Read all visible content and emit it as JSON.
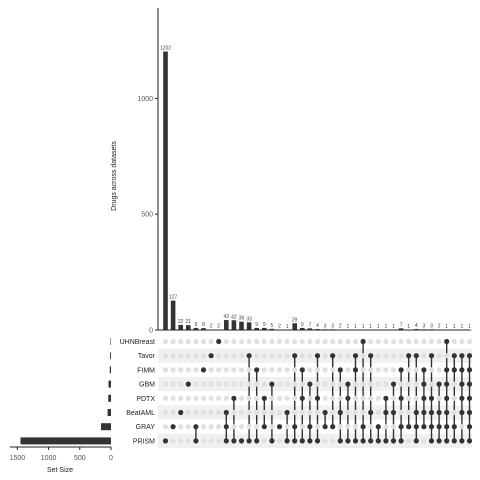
{
  "chart_data": {
    "type": "upset",
    "ylabel": "Drugs across datasets",
    "xlabel": "Set Size",
    "ylim": [
      0,
      1390
    ],
    "y_ticks": [
      0,
      500,
      1000
    ],
    "set_size_ticks": [
      1500,
      1000,
      500,
      0
    ],
    "set_size_lim": [
      0,
      1650
    ],
    "sets": [
      "UHNBreast",
      "Tavor",
      "FIMM",
      "GBM",
      "PDTX",
      "BeatAML",
      "GRAY",
      "PRISM"
    ],
    "set_sizes": [
      8,
      14,
      20,
      40,
      44,
      55,
      160,
      1450
    ],
    "intersections": [
      {
        "value": 1202,
        "sets": [
          "PRISM"
        ]
      },
      {
        "value": 127,
        "sets": [
          "GRAY"
        ]
      },
      {
        "value": 22,
        "sets": [
          "BeatAML"
        ]
      },
      {
        "value": 21,
        "sets": [
          "GBM"
        ]
      },
      {
        "value": 9,
        "sets": [
          "GRAY",
          "PRISM"
        ]
      },
      {
        "value": 8,
        "sets": [
          "FIMM"
        ]
      },
      {
        "value": 2,
        "sets": [
          "Tavor"
        ]
      },
      {
        "value": 2,
        "sets": [
          "UHNBreast"
        ]
      },
      {
        "value": 43,
        "sets": [
          "BeatAML",
          "GRAY",
          "PRISM"
        ]
      },
      {
        "value": 42,
        "sets": [
          "PDTX",
          "PRISM"
        ]
      },
      {
        "value": 36,
        "sets": [
          "PRISM"
        ]
      },
      {
        "value": 33,
        "sets": [
          "Tavor",
          "PRISM"
        ]
      },
      {
        "value": 9,
        "sets": [
          "FIMM",
          "PRISM"
        ]
      },
      {
        "value": 9,
        "sets": [
          "PDTX",
          "GRAY"
        ]
      },
      {
        "value": 5,
        "sets": [
          "GBM",
          "PRISM"
        ]
      },
      {
        "value": 2,
        "sets": [
          "GRAY"
        ]
      },
      {
        "value": 1,
        "sets": [
          "BeatAML",
          "PRISM"
        ]
      },
      {
        "value": 29,
        "sets": [
          "Tavor",
          "GRAY",
          "PRISM"
        ]
      },
      {
        "value": 9,
        "sets": [
          "FIMM",
          "PDTX",
          "PRISM"
        ]
      },
      {
        "value": 7,
        "sets": [
          "GBM",
          "GRAY",
          "PRISM"
        ]
      },
      {
        "value": 4,
        "sets": [
          "Tavor",
          "PDTX",
          "PRISM"
        ]
      },
      {
        "value": 3,
        "sets": [
          "BeatAML",
          "GRAY"
        ]
      },
      {
        "value": 3,
        "sets": [
          "Tavor",
          "GRAY"
        ]
      },
      {
        "value": 2,
        "sets": [
          "FIMM",
          "BeatAML",
          "PRISM"
        ]
      },
      {
        "value": 1,
        "sets": [
          "GBM",
          "PDTX",
          "PRISM"
        ]
      },
      {
        "value": 1,
        "sets": [
          "Tavor",
          "FIMM",
          "PRISM"
        ]
      },
      {
        "value": 1,
        "sets": [
          "UHNBreast",
          "GRAY",
          "PRISM"
        ]
      },
      {
        "value": 1,
        "sets": [
          "Tavor",
          "BeatAML",
          "PRISM"
        ]
      },
      {
        "value": 1,
        "sets": [
          "GRAY",
          "PRISM"
        ]
      },
      {
        "value": 1,
        "sets": [
          "PDTX",
          "BeatAML",
          "PRISM"
        ]
      },
      {
        "value": 1,
        "sets": [
          "GBM",
          "BeatAML",
          "PRISM"
        ]
      },
      {
        "value": 7,
        "sets": [
          "FIMM",
          "PDTX",
          "GRAY",
          "PRISM"
        ]
      },
      {
        "value": 1,
        "sets": [
          "Tavor",
          "GRAY"
        ]
      },
      {
        "value": 4,
        "sets": [
          "Tavor",
          "BeatAML",
          "GRAY",
          "PRISM"
        ]
      },
      {
        "value": 3,
        "sets": [
          "FIMM",
          "GBM",
          "PDTX",
          "BeatAML",
          "GRAY"
        ]
      },
      {
        "value": 3,
        "sets": [
          "Tavor",
          "PDTX",
          "BeatAML",
          "GRAY",
          "PRISM"
        ]
      },
      {
        "value": 2,
        "sets": [
          "GBM",
          "BeatAML",
          "GRAY",
          "PRISM"
        ]
      },
      {
        "value": 1,
        "sets": [
          "UHNBreast",
          "FIMM",
          "GBM",
          "PDTX",
          "BeatAML",
          "GRAY",
          "PRISM"
        ]
      },
      {
        "value": 1,
        "sets": [
          "Tavor",
          "FIMM",
          "GRAY",
          "PRISM"
        ]
      },
      {
        "value": 1,
        "sets": [
          "Tavor",
          "FIMM",
          "GBM",
          "PDTX",
          "BeatAML",
          "PRISM"
        ]
      },
      {
        "value": 1,
        "sets": [
          "Tavor",
          "FIMM",
          "GBM",
          "PDTX",
          "BeatAML",
          "GRAY",
          "PRISM"
        ]
      }
    ],
    "colors": {
      "bar": "#333333",
      "dot_active": "#333333",
      "dot_inactive": "#e0e0e0",
      "stripe": "#f0f0f0",
      "axis": "#222222"
    }
  }
}
